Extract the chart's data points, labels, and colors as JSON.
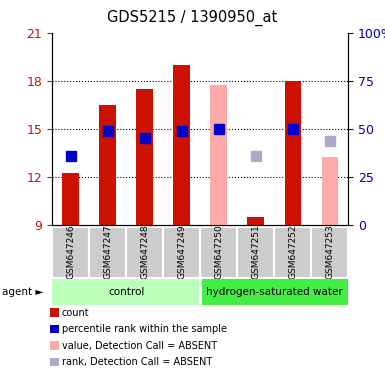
{
  "title": "GDS5215 / 1390950_at",
  "samples": [
    "GSM647246",
    "GSM647247",
    "GSM647248",
    "GSM647249",
    "GSM647250",
    "GSM647251",
    "GSM647252",
    "GSM647253"
  ],
  "ylim_left": [
    9,
    21
  ],
  "ylim_right": [
    0,
    100
  ],
  "yticks_left": [
    9,
    12,
    15,
    18,
    21
  ],
  "yticks_right": [
    0,
    25,
    50,
    75,
    100
  ],
  "yticklabels_right": [
    "0",
    "25",
    "50",
    "75",
    "100%"
  ],
  "bar_values": [
    12.2,
    16.5,
    17.5,
    19.0,
    null,
    9.5,
    18.0,
    null
  ],
  "absent_bar_values": [
    null,
    null,
    null,
    null,
    17.7,
    null,
    null,
    13.2
  ],
  "rank_values": [
    13.3,
    14.85,
    14.4,
    14.85,
    15.0,
    null,
    15.0,
    null
  ],
  "absent_rank_values": [
    null,
    null,
    null,
    null,
    null,
    13.3,
    null,
    14.2
  ],
  "bar_color_present": "#cc1100",
  "bar_color_absent": "#ffaaaa",
  "rank_color_present": "#0000cc",
  "rank_color_absent": "#aaaacc",
  "bar_width": 0.45,
  "rank_marker_size": 7,
  "grid_color": "black",
  "ylabel_left_color": "#cc1100",
  "ylabel_right_color": "#0000bb",
  "sample_bg": "#cccccc",
  "group_defs": [
    [
      0,
      3,
      "control",
      "#bbffbb"
    ],
    [
      4,
      7,
      "hydrogen-saturated water",
      "#44ee44"
    ]
  ],
  "legend_items": [
    [
      "count",
      "#cc1100"
    ],
    [
      "percentile rank within the sample",
      "#0000cc"
    ],
    [
      "value, Detection Call = ABSENT",
      "#ffaaaa"
    ],
    [
      "rank, Detection Call = ABSENT",
      "#aaaacc"
    ]
  ]
}
